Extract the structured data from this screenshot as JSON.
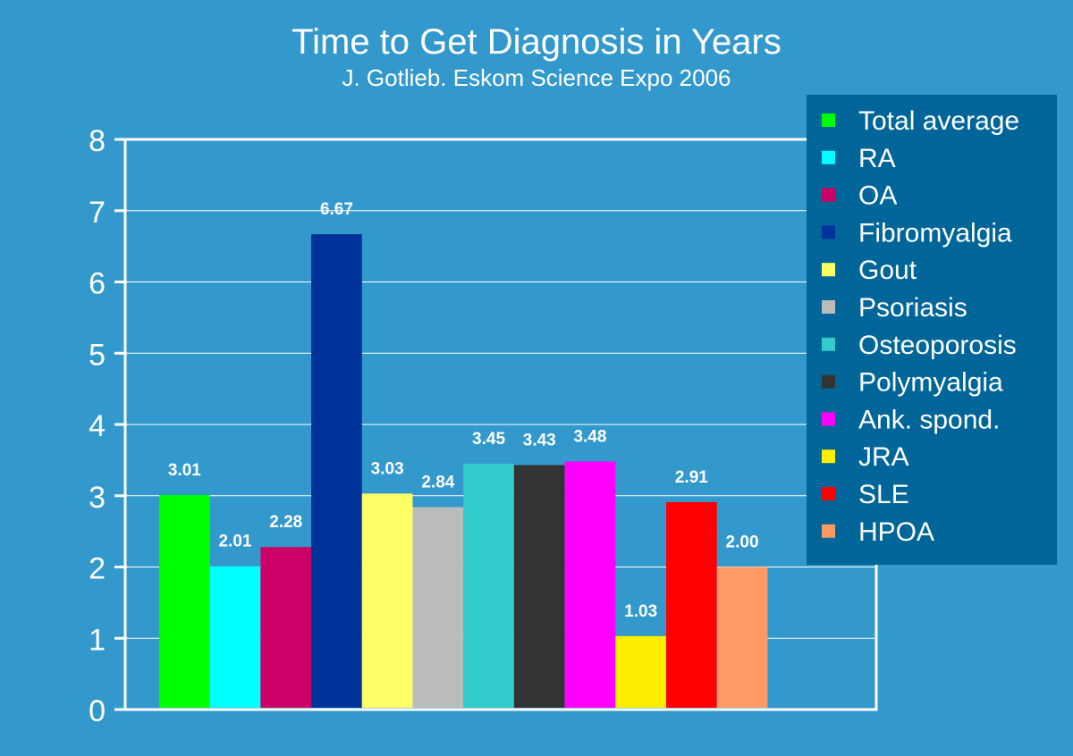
{
  "chart_data": {
    "type": "bar",
    "title": "Time to Get Diagnosis in Years",
    "subtitle": "J. Gotlieb. Eskom Science Expo 2006",
    "xlabel": "",
    "ylabel": "",
    "ylim": [
      0,
      8
    ],
    "yticks": [
      "0",
      "1",
      "2",
      "3",
      "4",
      "5",
      "6",
      "7",
      "8"
    ],
    "grid": true,
    "legend_position": "top-right",
    "series": [
      {
        "name": "Total average",
        "value": 3.01,
        "label": "3.01",
        "color": "#00ff00"
      },
      {
        "name": "RA",
        "value": 2.01,
        "label": "2.01",
        "color": "#00ffff"
      },
      {
        "name": "OA",
        "value": 2.28,
        "label": "2.28",
        "color": "#cc0066"
      },
      {
        "name": "Fibromyalgia",
        "value": 6.67,
        "label": "6.67",
        "color": "#003399"
      },
      {
        "name": "Gout",
        "value": 3.03,
        "label": "3.03",
        "color": "#ffff66"
      },
      {
        "name": "Psoriasis",
        "value": 2.84,
        "label": "2.84",
        "color": "#bbbbbb"
      },
      {
        "name": "Osteoporosis",
        "value": 3.45,
        "label": "3.45",
        "color": "#33cccc"
      },
      {
        "name": "Polymyalgia",
        "value": 3.43,
        "label": "3.43",
        "color": "#333333"
      },
      {
        "name": "Ank. spond.",
        "value": 3.48,
        "label": "3.48",
        "color": "#ff00ff"
      },
      {
        "name": "JRA",
        "value": 1.03,
        "label": "1.03",
        "color": "#ffee00"
      },
      {
        "name": "SLE",
        "value": 2.91,
        "label": "2.91",
        "color": "#ff0000"
      },
      {
        "name": "HPOA",
        "value": 2.0,
        "label": "2.00",
        "color": "#ff9966"
      }
    ]
  },
  "colors": {
    "background": "#3399cc",
    "legend_background": "#006699",
    "text": "#ffffff"
  }
}
